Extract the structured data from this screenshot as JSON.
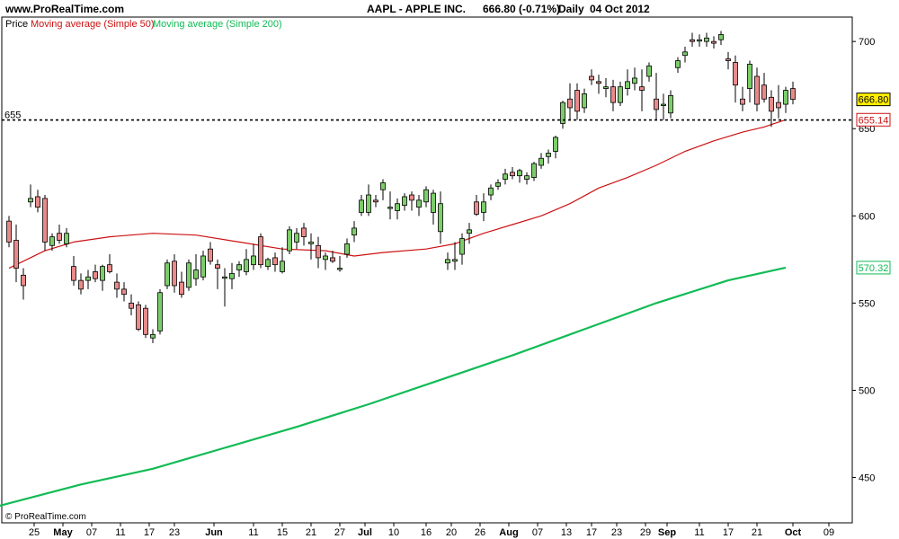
{
  "header": {
    "site": "www.ProRealTime.com",
    "instrument": "AAPL - APPLE INC.",
    "quote": "666.80 (-0.71%)",
    "period": "Daily",
    "date": "04 Oct 2012"
  },
  "copyright": "© ProRealTime.com",
  "chart_data": {
    "type": "candlestick",
    "legend": [
      {
        "label": "Price",
        "color": "#000000"
      },
      {
        "label": "Moving average (Simple 50)",
        "color": "#cc1111"
      },
      {
        "label": "Moving average (Simple 200)",
        "color": "#11bb55"
      }
    ],
    "ylim": [
      424,
      714
    ],
    "y_ticks": [
      450,
      500,
      550,
      600,
      650,
      700
    ],
    "x_ticks": [
      {
        "label": "25",
        "bold": false
      },
      {
        "label": "May",
        "bold": true
      },
      {
        "label": "07",
        "bold": false
      },
      {
        "label": "11",
        "bold": false
      },
      {
        "label": "17",
        "bold": false
      },
      {
        "label": "23",
        "bold": false
      },
      {
        "label": "Jun",
        "bold": true
      },
      {
        "label": "11",
        "bold": false
      },
      {
        "label": "15",
        "bold": false
      },
      {
        "label": "21",
        "bold": false
      },
      {
        "label": "27",
        "bold": false
      },
      {
        "label": "Jul",
        "bold": true
      },
      {
        "label": "10",
        "bold": false
      },
      {
        "label": "16",
        "bold": false
      },
      {
        "label": "20",
        "bold": false
      },
      {
        "label": "26",
        "bold": false
      },
      {
        "label": "Aug",
        "bold": true
      },
      {
        "label": "07",
        "bold": false
      },
      {
        "label": "13",
        "bold": false
      },
      {
        "label": "17",
        "bold": false
      },
      {
        "label": "23",
        "bold": false
      },
      {
        "label": "29",
        "bold": false
      },
      {
        "label": "Sep",
        "bold": true
      },
      {
        "label": "11",
        "bold": false
      },
      {
        "label": "17",
        "bold": false
      },
      {
        "label": "21",
        "bold": false
      },
      {
        "label": "Oct",
        "bold": true
      },
      {
        "label": "09",
        "bold": false
      }
    ],
    "horizontal_line": {
      "value": 655,
      "label": "655"
    },
    "badges": [
      {
        "label": "666.80",
        "value": 666.8,
        "bg": "#ffee00",
        "border": "#000000",
        "text_color": "#000000"
      },
      {
        "label": "655.14",
        "value": 655.14,
        "bg": "#ffffff",
        "border": "#cc1111",
        "text_color": "#cc1111"
      },
      {
        "label": "570.32",
        "value": 570.32,
        "bg": "#ffffff",
        "border": "#11bb55",
        "text_color": "#11bb55"
      }
    ],
    "ohlc": [
      [
        597,
        600,
        582,
        585
      ],
      [
        586,
        595,
        562,
        570
      ],
      [
        566,
        570,
        552,
        560
      ],
      [
        608,
        618,
        605,
        610
      ],
      [
        611,
        615,
        602,
        605
      ],
      [
        610,
        612,
        580,
        585
      ],
      [
        583,
        590,
        580,
        588
      ],
      [
        590,
        595,
        584,
        586
      ],
      [
        584,
        593,
        582,
        590
      ],
      [
        571,
        577,
        560,
        563
      ],
      [
        563,
        567,
        555,
        558
      ],
      [
        563,
        569,
        558,
        565
      ],
      [
        568,
        572,
        562,
        564
      ],
      [
        563,
        572,
        557,
        571
      ],
      [
        572,
        578,
        567,
        568
      ],
      [
        562,
        567,
        553,
        558
      ],
      [
        558,
        562,
        551,
        555
      ],
      [
        550,
        555,
        543,
        547
      ],
      [
        549,
        551,
        534,
        535
      ],
      [
        547,
        549,
        530,
        532
      ],
      [
        530,
        535,
        527,
        532
      ],
      [
        534,
        558,
        532,
        556
      ],
      [
        560,
        575,
        558,
        573
      ],
      [
        574,
        578,
        556,
        560
      ],
      [
        562,
        568,
        553,
        555
      ],
      [
        559,
        575,
        557,
        573
      ],
      [
        564,
        578,
        560,
        569
      ],
      [
        565,
        580,
        563,
        577
      ],
      [
        581,
        585,
        572,
        574
      ],
      [
        572,
        575,
        558,
        570
      ],
      [
        565,
        570,
        548,
        565
      ],
      [
        564,
        573,
        558,
        567
      ],
      [
        569,
        574,
        565,
        572
      ],
      [
        568,
        581,
        566,
        575
      ],
      [
        572,
        584,
        569,
        577
      ],
      [
        588,
        590,
        570,
        572
      ],
      [
        571,
        576,
        569,
        575
      ],
      [
        576,
        579,
        568,
        572
      ],
      [
        568,
        582,
        567,
        574
      ],
      [
        580,
        594,
        578,
        592
      ],
      [
        585,
        593,
        581,
        590
      ],
      [
        593,
        596,
        583,
        588
      ],
      [
        584,
        590,
        575,
        585
      ],
      [
        583,
        588,
        570,
        576
      ],
      [
        575,
        579,
        569,
        577
      ],
      [
        576,
        580,
        573,
        574
      ],
      [
        570,
        577,
        568,
        570
      ],
      [
        578,
        587,
        576,
        584
      ],
      [
        589,
        597,
        585,
        593
      ],
      [
        602,
        612,
        600,
        609
      ],
      [
        602,
        618,
        600,
        612
      ],
      [
        609,
        612,
        605,
        608
      ],
      [
        615,
        621,
        609,
        619
      ],
      [
        605,
        614,
        598,
        605
      ],
      [
        603,
        610,
        598,
        607
      ],
      [
        606,
        613,
        603,
        611
      ],
      [
        612,
        614,
        603,
        609
      ],
      [
        605,
        612,
        600,
        609
      ],
      [
        608,
        617,
        605,
        615
      ],
      [
        602,
        615,
        595,
        613
      ],
      [
        591,
        614,
        584,
        607
      ],
      [
        573,
        579,
        569,
        575
      ],
      [
        574,
        585,
        569,
        575
      ],
      [
        578,
        590,
        572,
        587
      ],
      [
        590,
        596,
        584,
        592
      ],
      [
        608,
        612,
        600,
        601
      ],
      [
        602,
        613,
        597,
        608
      ],
      [
        612,
        618,
        609,
        616
      ],
      [
        617,
        621,
        615,
        619
      ],
      [
        621,
        627,
        618,
        624
      ],
      [
        625,
        628,
        621,
        623
      ],
      [
        623,
        627,
        619,
        626
      ],
      [
        621,
        625,
        618,
        623
      ],
      [
        622,
        631,
        620,
        630
      ],
      [
        629,
        636,
        627,
        633
      ],
      [
        634,
        638,
        630,
        636
      ],
      [
        637,
        646,
        633,
        645
      ],
      [
        653,
        666,
        650,
        665
      ],
      [
        667,
        676,
        655,
        662
      ],
      [
        672,
        676,
        655,
        660
      ],
      [
        662,
        673,
        659,
        670
      ],
      [
        680,
        684,
        675,
        678
      ],
      [
        677,
        681,
        670,
        676
      ],
      [
        673,
        679,
        668,
        674
      ],
      [
        674,
        678,
        660,
        665
      ],
      [
        665,
        677,
        663,
        674
      ],
      [
        673,
        684,
        669,
        677
      ],
      [
        676,
        685,
        672,
        679
      ],
      [
        674,
        684,
        660,
        672
      ],
      [
        680,
        688,
        677,
        686
      ],
      [
        667,
        682,
        655,
        661
      ],
      [
        664,
        670,
        655,
        664
      ],
      [
        659,
        672,
        656,
        669
      ],
      [
        685,
        691,
        682,
        689
      ],
      [
        692,
        697,
        688,
        694
      ],
      [
        701,
        705,
        697,
        700
      ],
      [
        701,
        704,
        697,
        701
      ],
      [
        700,
        705,
        697,
        702
      ],
      [
        700,
        703,
        696,
        699
      ],
      [
        701,
        706,
        698,
        704
      ],
      [
        690,
        694,
        684,
        689
      ],
      [
        688,
        692,
        665,
        675
      ],
      [
        667,
        674,
        660,
        664
      ],
      [
        673,
        689,
        665,
        687
      ],
      [
        680,
        685,
        660,
        664
      ],
      [
        675,
        682,
        665,
        667
      ],
      [
        668,
        672,
        651,
        660
      ],
      [
        665,
        675,
        656,
        662
      ],
      [
        664,
        674,
        659,
        672
      ],
      [
        673,
        677,
        664,
        666.8
      ]
    ],
    "sma50": [
      [
        0,
        570
      ],
      [
        5,
        580
      ],
      [
        9,
        585
      ],
      [
        14,
        588
      ],
      [
        20,
        590
      ],
      [
        26,
        589
      ],
      [
        32,
        585
      ],
      [
        38,
        581
      ],
      [
        44,
        580
      ],
      [
        48,
        577
      ],
      [
        52,
        579
      ],
      [
        58,
        581
      ],
      [
        62,
        584
      ],
      [
        66,
        590
      ],
      [
        70,
        595
      ],
      [
        74,
        600
      ],
      [
        78,
        607
      ],
      [
        82,
        616
      ],
      [
        86,
        622
      ],
      [
        90,
        629
      ],
      [
        94,
        637
      ],
      [
        98,
        643
      ],
      [
        102,
        648
      ],
      [
        105,
        651
      ],
      [
        108,
        655.14
      ]
    ],
    "sma200": [
      [
        -2,
        433
      ],
      [
        10,
        446
      ],
      [
        20,
        455
      ],
      [
        30,
        467
      ],
      [
        40,
        479
      ],
      [
        50,
        492
      ],
      [
        60,
        506
      ],
      [
        70,
        520
      ],
      [
        80,
        535
      ],
      [
        90,
        550
      ],
      [
        100,
        563
      ],
      [
        108,
        570.32
      ]
    ]
  }
}
